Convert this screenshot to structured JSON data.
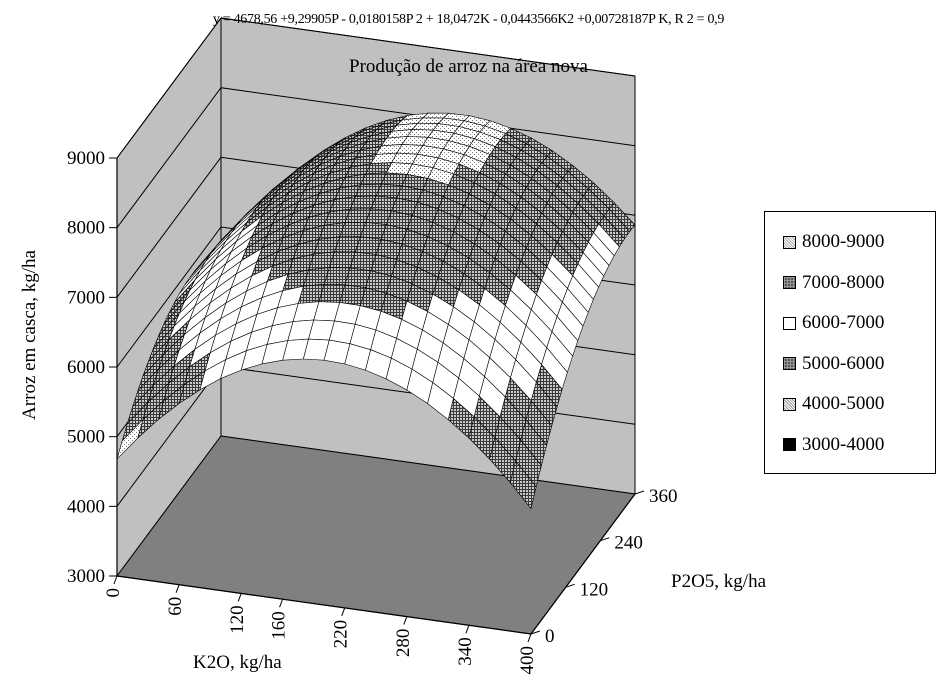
{
  "chart_data": {
    "type": "surface",
    "equation": "y = 4678,56 +9,29905P  - 0,0180158P 2 + 18,0472K - 0,0443566K2 +0,00728187P K, R 2 = 0,9",
    "title": "Produção de arroz na área nova",
    "zlabel": "Arroz em casca, kg/ha",
    "xlabel": "K2O, kg/ha",
    "ylabel": "P2O5, kg/ha",
    "zlim": [
      3000,
      9000
    ],
    "z_ticks": [
      "3000",
      "4000",
      "5000",
      "6000",
      "7000",
      "8000",
      "9000"
    ],
    "x_ticks": [
      "0",
      "60",
      "120",
      "160",
      "220",
      "280",
      "340",
      "400"
    ],
    "y_ticks": [
      "0",
      "120",
      "240",
      "360"
    ],
    "x_range": [
      0,
      400
    ],
    "y_range": [
      0,
      360
    ],
    "coefficients": {
      "a": 4678.56,
      "bP": 9.29905,
      "cP2": -0.0180158,
      "dK": 18.0472,
      "eK2": -0.0443566,
      "fPK": 0.00728187
    },
    "legend_position": "right",
    "legend": [
      {
        "label": "8000-9000",
        "pattern": "light-dots",
        "min": 8000,
        "max": 9000
      },
      {
        "label": "7000-8000",
        "pattern": "dark-grid",
        "min": 7000,
        "max": 8000
      },
      {
        "label": "6000-7000",
        "pattern": "white",
        "min": 6000,
        "max": 7000
      },
      {
        "label": "5000-6000",
        "pattern": "dark-grid",
        "min": 5000,
        "max": 6000
      },
      {
        "label": "4000-5000",
        "pattern": "light-dots",
        "min": 4000,
        "max": 5000
      },
      {
        "label": "3000-4000",
        "pattern": "solid-black",
        "min": 3000,
        "max": 4000
      }
    ],
    "grid": true
  }
}
